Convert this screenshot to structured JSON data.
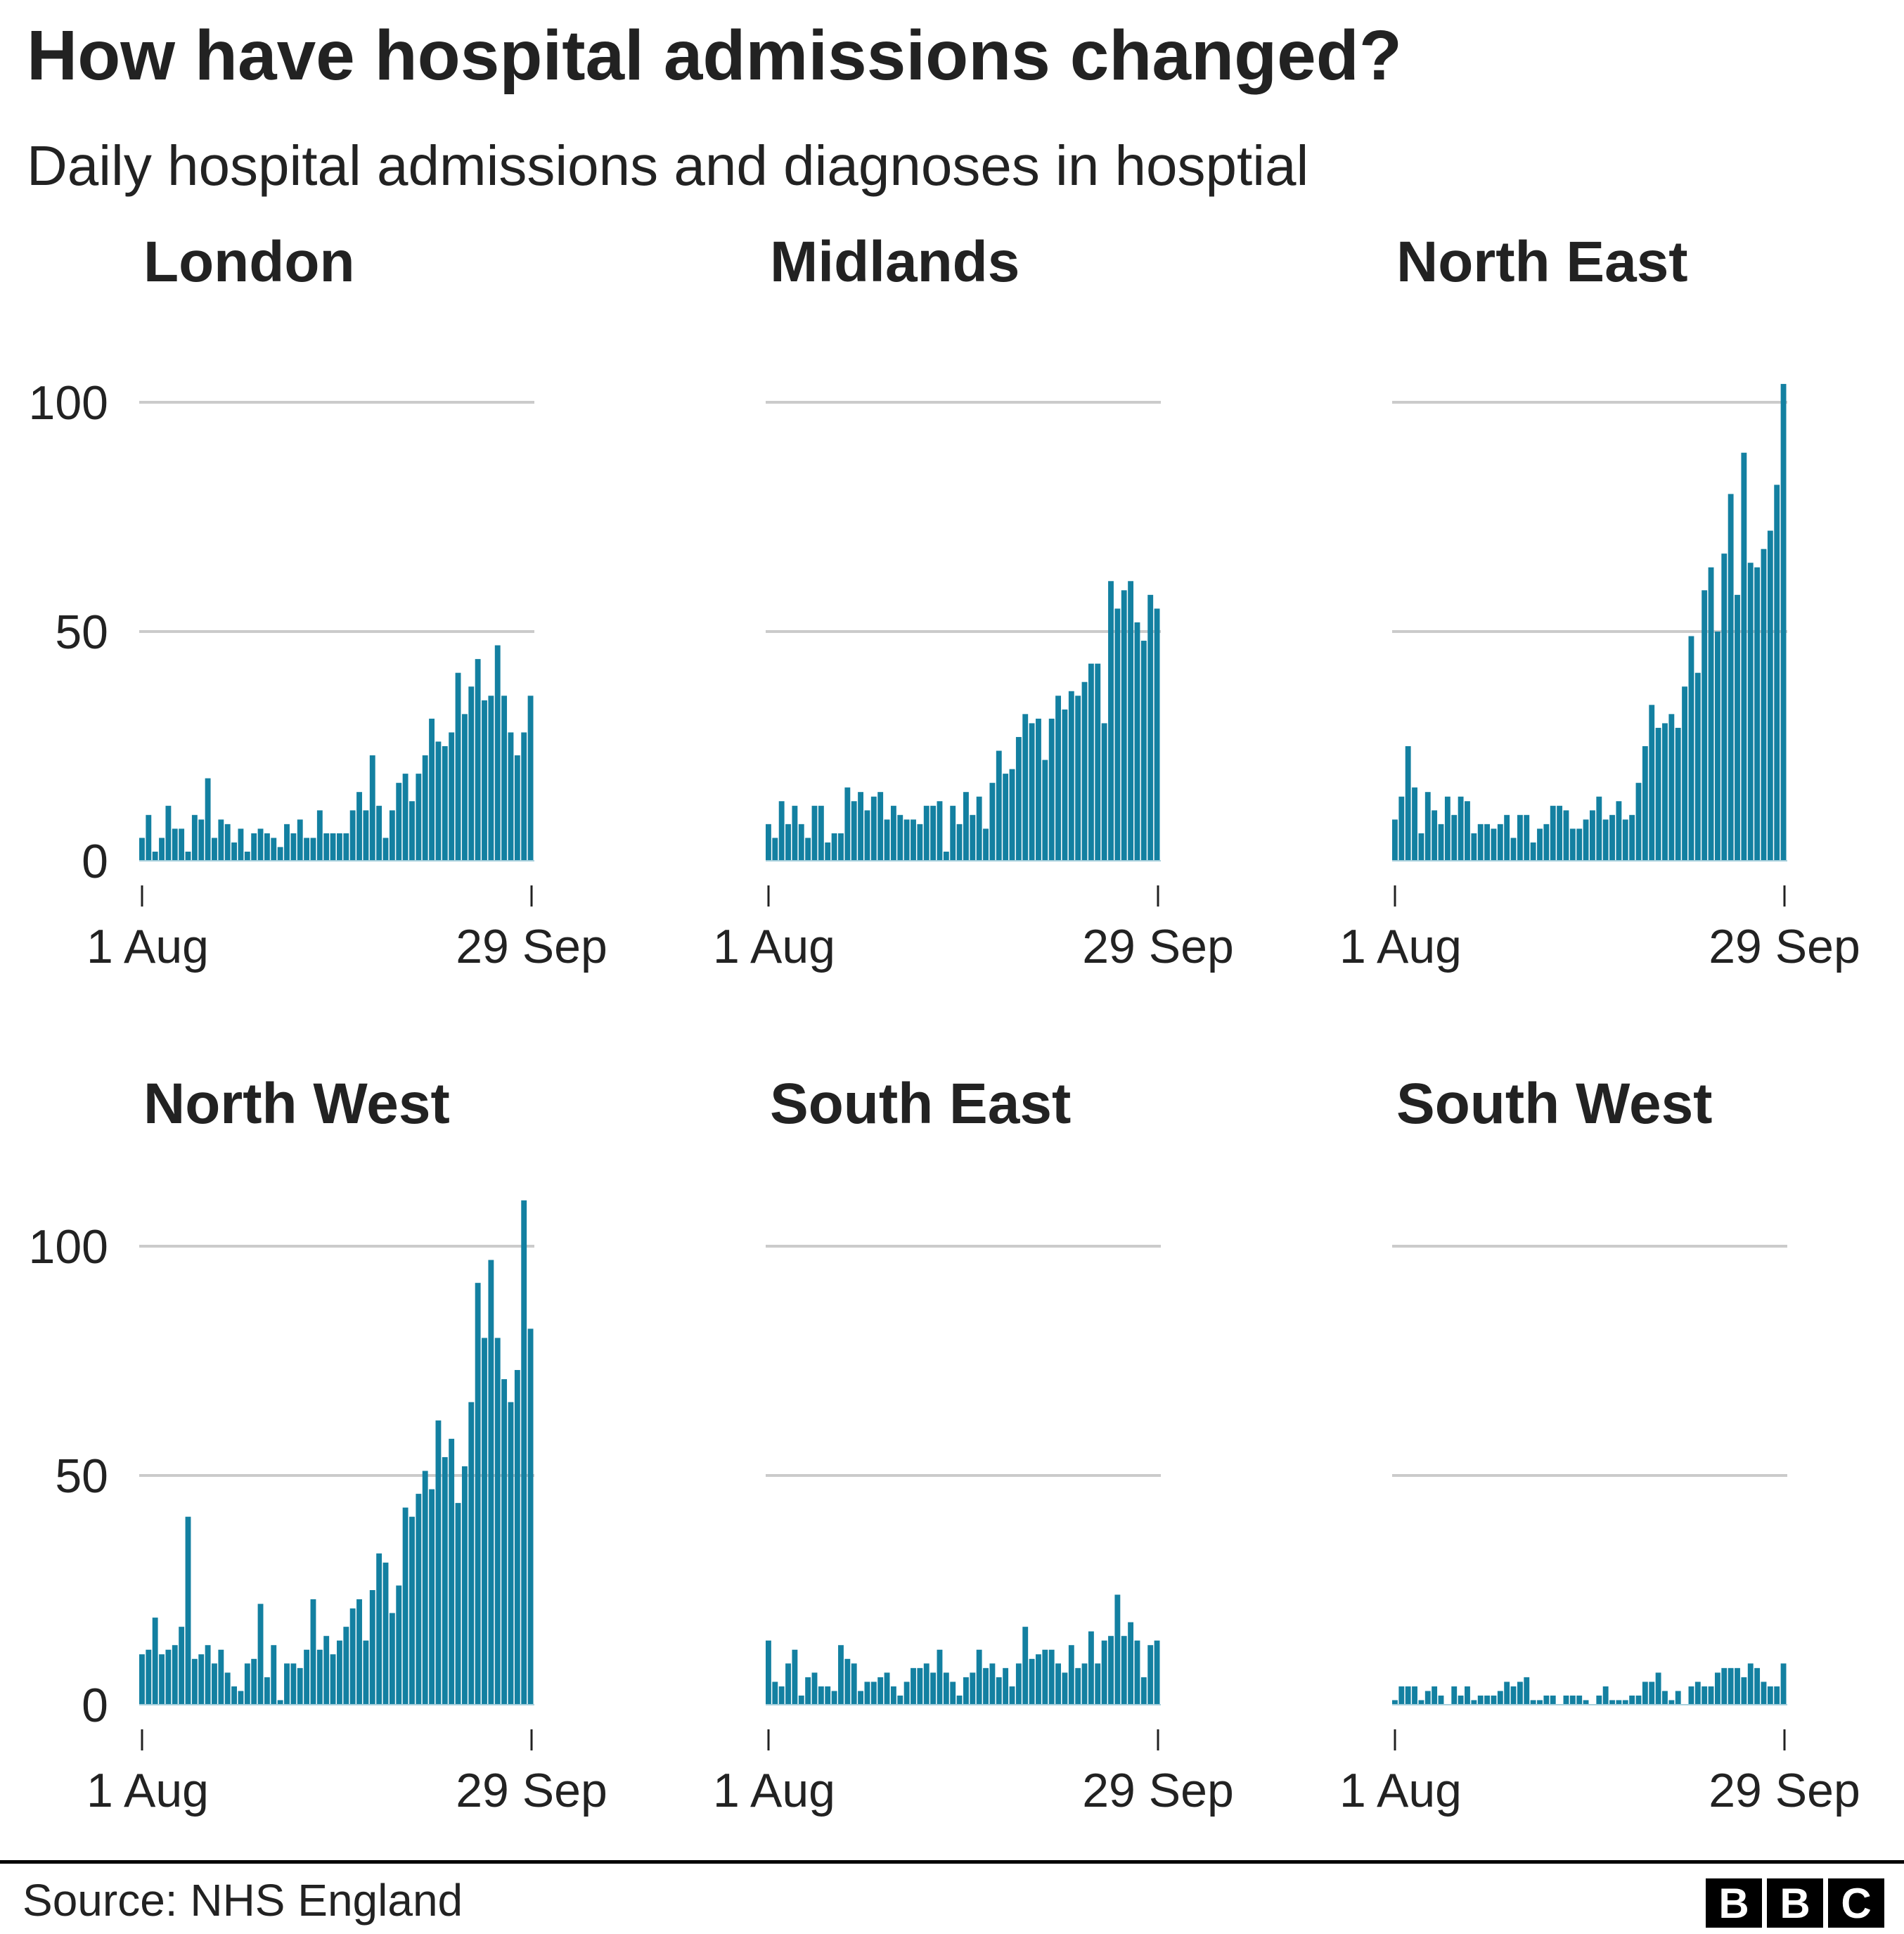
{
  "header": {
    "title": "How have hospital admissions changed?",
    "subtitle": "Daily hospital admissions and diagnoses in hosptial"
  },
  "footer": {
    "source": "Source: NHS England",
    "logo": [
      "B",
      "B",
      "C"
    ]
  },
  "colors": {
    "bar": "#1380a1",
    "grid": "#cbcbcb",
    "text": "#222222"
  },
  "chart_data": [
    {
      "type": "bar",
      "title": "London",
      "x_range": [
        "1 Aug",
        "29 Sep"
      ],
      "x_tick_labels": [
        "1 Aug",
        "29 Sep"
      ],
      "y_tick_labels": [
        "100",
        "50",
        "0"
      ],
      "ylim": [
        0,
        110
      ],
      "grid": true,
      "values": [
        5,
        10,
        2,
        5,
        12,
        7,
        7,
        2,
        10,
        9,
        18,
        5,
        9,
        8,
        4,
        7,
        2,
        6,
        7,
        6,
        5,
        3,
        8,
        6,
        9,
        5,
        5,
        11,
        6,
        6,
        6,
        6,
        11,
        15,
        11,
        23,
        12,
        5,
        11,
        17,
        19,
        13,
        19,
        23,
        31,
        26,
        25,
        28,
        41,
        32,
        38,
        44,
        35,
        36,
        47,
        36,
        28,
        23,
        28,
        36
      ]
    },
    {
      "type": "bar",
      "title": "Midlands",
      "x_range": [
        "1 Aug",
        "29 Sep"
      ],
      "x_tick_labels": [
        "1 Aug",
        "29 Sep"
      ],
      "y_tick_labels": [],
      "ylim": [
        0,
        110
      ],
      "grid": true,
      "values": [
        8,
        5,
        13,
        8,
        12,
        8,
        5,
        12,
        12,
        4,
        6,
        6,
        16,
        13,
        15,
        11,
        14,
        15,
        9,
        12,
        10,
        9,
        9,
        8,
        12,
        12,
        13,
        2,
        12,
        8,
        15,
        10,
        14,
        7,
        17,
        24,
        19,
        20,
        27,
        32,
        30,
        31,
        22,
        31,
        36,
        33,
        37,
        36,
        39,
        43,
        43,
        30,
        61,
        55,
        59,
        61,
        52,
        48,
        58,
        55
      ]
    },
    {
      "type": "bar",
      "title": "North East",
      "x_range": [
        "1 Aug",
        "29 Sep"
      ],
      "x_tick_labels": [
        "1 Aug",
        "29 Sep"
      ],
      "y_tick_labels": [],
      "ylim": [
        0,
        110
      ],
      "grid": true,
      "values": [
        9,
        14,
        25,
        16,
        6,
        15,
        11,
        8,
        14,
        10,
        14,
        13,
        6,
        8,
        8,
        7,
        8,
        10,
        5,
        10,
        10,
        4,
        7,
        8,
        12,
        12,
        11,
        7,
        7,
        9,
        11,
        14,
        9,
        10,
        13,
        9,
        10,
        17,
        25,
        34,
        29,
        30,
        32,
        29,
        38,
        49,
        41,
        59,
        64,
        50,
        67,
        80,
        58,
        89,
        65,
        64,
        68,
        72,
        82,
        104
      ]
    },
    {
      "type": "bar",
      "title": "North West",
      "x_range": [
        "1 Aug",
        "29 Sep"
      ],
      "x_tick_labels": [
        "1 Aug",
        "29 Sep"
      ],
      "y_tick_labels": [
        "100",
        "50",
        "0"
      ],
      "ylim": [
        0,
        110
      ],
      "grid": true,
      "values": [
        11,
        12,
        19,
        11,
        12,
        13,
        17,
        41,
        10,
        11,
        13,
        9,
        12,
        7,
        4,
        3,
        9,
        10,
        22,
        6,
        13,
        1,
        9,
        9,
        8,
        12,
        23,
        12,
        15,
        11,
        14,
        17,
        21,
        23,
        14,
        25,
        33,
        31,
        20,
        26,
        43,
        41,
        46,
        51,
        47,
        62,
        54,
        58,
        44,
        52,
        66,
        92,
        80,
        97,
        80,
        71,
        66,
        73,
        110,
        82
      ]
    },
    {
      "type": "bar",
      "title": "South East",
      "x_range": [
        "1 Aug",
        "29 Sep"
      ],
      "x_tick_labels": [
        "1 Aug",
        "29 Sep"
      ],
      "y_tick_labels": [],
      "ylim": [
        0,
        110
      ],
      "grid": true,
      "values": [
        14,
        5,
        4,
        9,
        12,
        2,
        6,
        7,
        4,
        4,
        3,
        13,
        10,
        9,
        3,
        5,
        5,
        6,
        7,
        4,
        2,
        5,
        8,
        8,
        9,
        7,
        12,
        7,
        5,
        2,
        6,
        7,
        12,
        8,
        9,
        6,
        8,
        4,
        9,
        17,
        10,
        11,
        12,
        12,
        9,
        7,
        13,
        8,
        9,
        16,
        9,
        14,
        15,
        24,
        15,
        18,
        14,
        6,
        13,
        14
      ]
    },
    {
      "type": "bar",
      "title": "South West",
      "x_range": [
        "1 Aug",
        "29 Sep"
      ],
      "x_tick_labels": [
        "1 Aug",
        "29 Sep"
      ],
      "y_tick_labels": [],
      "ylim": [
        0,
        110
      ],
      "grid": true,
      "values": [
        1,
        4,
        4,
        4,
        1,
        3,
        4,
        2,
        0,
        4,
        2,
        4,
        1,
        2,
        2,
        2,
        3,
        5,
        4,
        5,
        6,
        1,
        1,
        2,
        2,
        0,
        2,
        2,
        2,
        1,
        0,
        2,
        4,
        1,
        1,
        1,
        2,
        2,
        5,
        5,
        7,
        3,
        1,
        3,
        0,
        4,
        5,
        4,
        4,
        7,
        8,
        8,
        8,
        6,
        9,
        8,
        5,
        4,
        4,
        9
      ]
    }
  ]
}
